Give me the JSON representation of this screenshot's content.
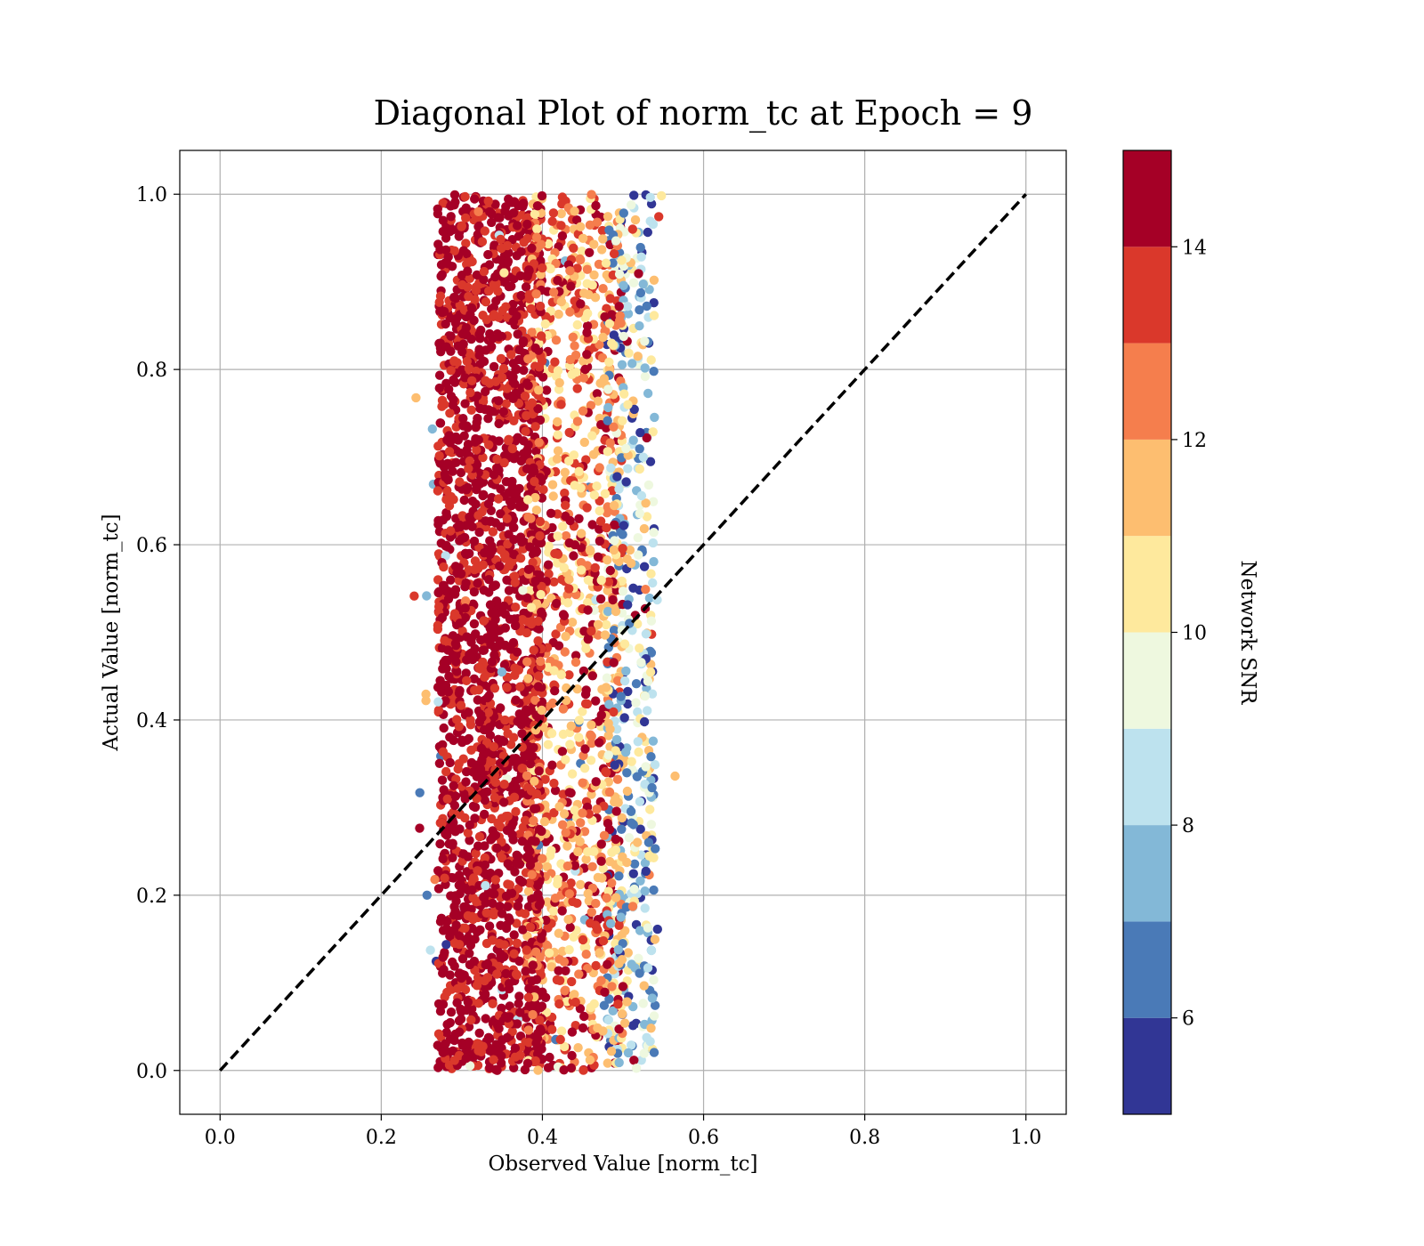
{
  "chart_data": {
    "type": "scatter",
    "title": "Diagonal Plot of norm_tc at Epoch = 9",
    "xlabel": "Observed Value [norm_tc]",
    "ylabel": "Actual Value [norm_tc]",
    "xlim": [
      -0.05,
      1.05
    ],
    "ylim": [
      -0.05,
      1.05
    ],
    "xticks": [
      "0.0",
      "0.2",
      "0.4",
      "0.6",
      "0.8",
      "1.0"
    ],
    "yticks": [
      "0.0",
      "0.2",
      "0.4",
      "0.6",
      "0.8",
      "1.0"
    ],
    "grid": true,
    "reference_line": {
      "x": [
        0.0,
        1.0
      ],
      "y": [
        0.0,
        1.0
      ],
      "style": "dashed",
      "color": "#000000"
    },
    "points_summary": {
      "x_range": [
        0.24,
        0.57
      ],
      "y_range": [
        0.0,
        1.0
      ],
      "dense_core_x_range": [
        0.27,
        0.4
      ],
      "color_variable": "Network SNR"
    },
    "colorbar": {
      "label": "Network SNR",
      "range": [
        5,
        15
      ],
      "ticks": [
        "6",
        "8",
        "10",
        "12",
        "14"
      ],
      "tick_values": [
        6,
        8,
        10,
        12,
        14
      ],
      "bins": [
        5,
        6,
        7,
        8,
        9,
        10,
        11,
        12,
        13,
        14,
        15
      ],
      "colors": [
        "#313695",
        "#4a7ab7",
        "#83b8d7",
        "#bde2ee",
        "#eef8df",
        "#fee99d",
        "#fdbe70",
        "#f57e4d",
        "#da382b",
        "#a50026"
      ]
    }
  }
}
